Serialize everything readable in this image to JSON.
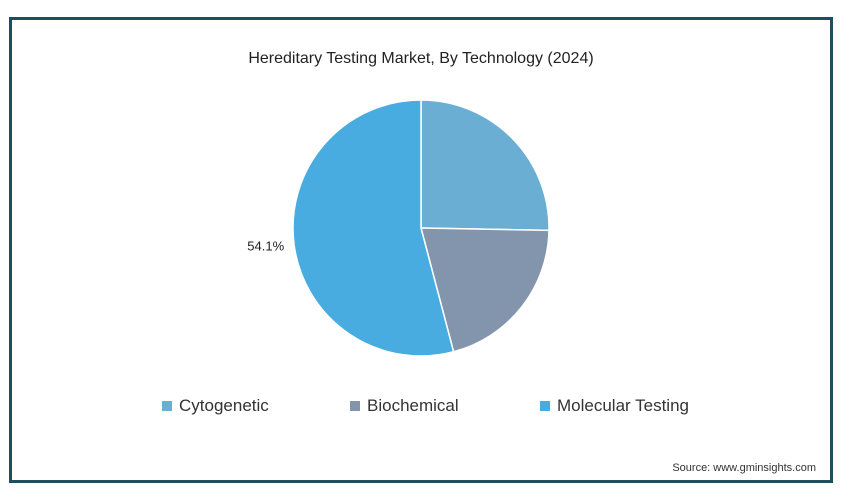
{
  "chart_data": {
    "type": "pie",
    "title": "Hereditary Testing Market, By Technology (2024)",
    "slices": [
      {
        "label": "Cytogenetic",
        "value": 25.3,
        "color": "#6aaed3"
      },
      {
        "label": "Biochemical",
        "value": 20.6,
        "color": "#8395ad"
      },
      {
        "label": "Molecular Testing",
        "value": 54.1,
        "color": "#48ace0"
      }
    ],
    "data_labels": [
      {
        "slice": "Molecular Testing",
        "text": "54.1%"
      }
    ],
    "legend_position": "bottom"
  },
  "source": "Source: www.gminsights.com"
}
